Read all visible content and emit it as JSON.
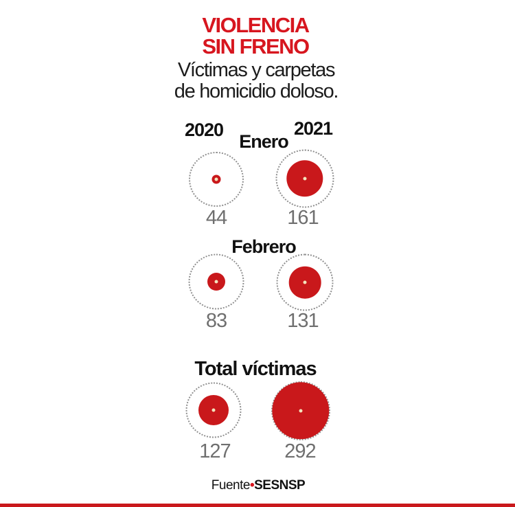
{
  "header": {
    "title_line1": "VIOLENCIA",
    "title_line2": "SIN FRENO",
    "subtitle_line1": "Víctimas y carpetas",
    "subtitle_line2": "de homicidio doloso."
  },
  "source": {
    "prefix": "Fuente",
    "bullet": "•",
    "name": "SESNSP"
  },
  "colors": {
    "title_red": "#d7161f",
    "bubble_red": "#c9181b",
    "number_gray": "#6f6f6f",
    "ring_gray": "#8f8f8f",
    "center_dot_cream": "#f3e4bd"
  },
  "chart_data": {
    "type": "bubble",
    "title": "VIOLENCIA SIN FRENO",
    "subtitle": "Víctimas y carpetas de homicidio doloso.",
    "columns": [
      "2020",
      "2021"
    ],
    "rows": [
      {
        "label": "Enero",
        "values": [
          44,
          161
        ]
      },
      {
        "label": "Febrero",
        "values": [
          83,
          131
        ]
      },
      {
        "label": "Total víctimas",
        "values": [
          127,
          292
        ]
      }
    ],
    "source": "Fuente•SESNSP",
    "legend_position": "none",
    "layout": {
      "max_reference_value": 292,
      "ring_radii": [
        [
          40,
          42.5
        ],
        [
          40.5,
          41.5
        ],
        [
          40.5,
          43
        ]
      ],
      "bubble_radii": [
        [
          6.5,
          26.7
        ],
        [
          13,
          23.3
        ],
        [
          22,
          41.7
        ]
      ],
      "center_dot_radius": 2.5
    }
  }
}
